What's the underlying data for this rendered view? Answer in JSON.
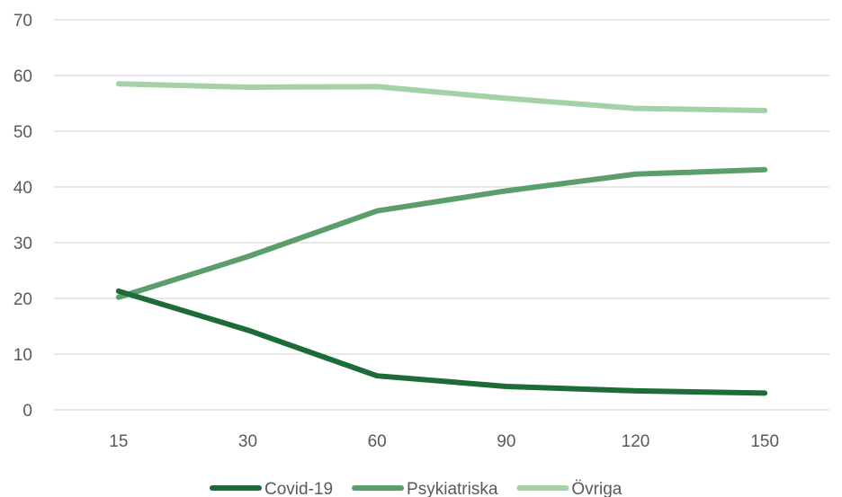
{
  "chart_data": {
    "type": "line",
    "x": [
      15,
      30,
      60,
      90,
      120,
      150
    ],
    "categories": [
      "15",
      "30",
      "60",
      "90",
      "120",
      "150"
    ],
    "ylim": [
      0,
      70
    ],
    "yticks": [
      0,
      10,
      20,
      30,
      40,
      50,
      60,
      70
    ],
    "grid": true,
    "legend_position": "bottom",
    "series": [
      {
        "name": "Covid-19",
        "color": "#1e6b3a",
        "values": [
          21.3,
          14.3,
          6.1,
          4.2,
          3.4,
          3.0
        ]
      },
      {
        "name": "Psykiatriska",
        "color": "#5b9e6b",
        "values": [
          20.2,
          27.5,
          35.7,
          39.3,
          42.3,
          43.1
        ]
      },
      {
        "name": "Övriga",
        "color": "#a4d2a8",
        "values": [
          58.5,
          57.9,
          58.0,
          55.9,
          54.1,
          53.7
        ]
      }
    ]
  }
}
